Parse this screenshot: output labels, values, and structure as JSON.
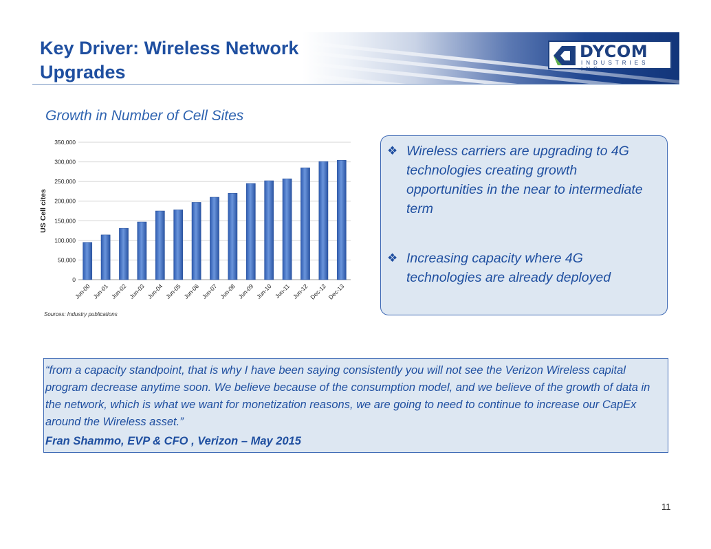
{
  "header": {
    "title_lines": [
      "Key Driver:  Wireless Network",
      "Upgrades"
    ],
    "logo": {
      "name": "DYCOM",
      "subtitle": "INDUSTRIES INC.",
      "icon": "dycom-logo-icon"
    }
  },
  "colors": {
    "title": "#1f4fa0",
    "accent": "#2e63b0",
    "bar": "#4a78c8",
    "panel": "#dde7f2",
    "border": "#3f6ab5"
  },
  "chart_data": {
    "type": "bar",
    "title": "Growth in Number of Cell Sites",
    "xlabel": "",
    "ylabel": "US Cell cites",
    "ylim": [
      0,
      350000
    ],
    "yticks": [
      0,
      50000,
      100000,
      150000,
      200000,
      250000,
      300000,
      350000
    ],
    "ytick_labels": [
      "0",
      "50,000",
      "100,000",
      "150,000",
      "200,000",
      "250,000",
      "300,000",
      "350,000"
    ],
    "grid": true,
    "legend": "none",
    "categories": [
      "Jun-00",
      "Jun-01",
      "Jun-02",
      "Jun-03",
      "Jun-04",
      "Jun-05",
      "Jun-06",
      "Jun-07",
      "Jun-08",
      "Jun-09",
      "Jun-10",
      "Jun-11",
      "Jun-12",
      "Dec-12",
      "Dec-13"
    ],
    "values": [
      95000,
      114000,
      131000,
      147000,
      175000,
      178000,
      197000,
      210000,
      220000,
      245000,
      252000,
      257000,
      285000,
      301000,
      304000
    ]
  },
  "source_note": "Sources: Industry publications",
  "callout": {
    "items": [
      "Wireless carriers are upgrading to 4G technologies creating growth opportunities in the near to intermediate term",
      " Increasing capacity where 4G technologies are already deployed"
    ],
    "bullet_icon": "diamond-bullet-icon",
    "bullet_glyph": "❖"
  },
  "quote": {
    "text": " “from a capacity standpoint, that is why I have been saying consistently you will not see the Verizon Wireless capital program decrease anytime soon. We believe because of the consumption model, and we believe of the growth of data in the network, which is what we want for monetization reasons, we are going to need to continue to increase our CapEx around the Wireless asset.”",
    "attribution": "Fran Shammo,  EVP & CFO , Verizon – May 2015"
  },
  "page_number": "11"
}
